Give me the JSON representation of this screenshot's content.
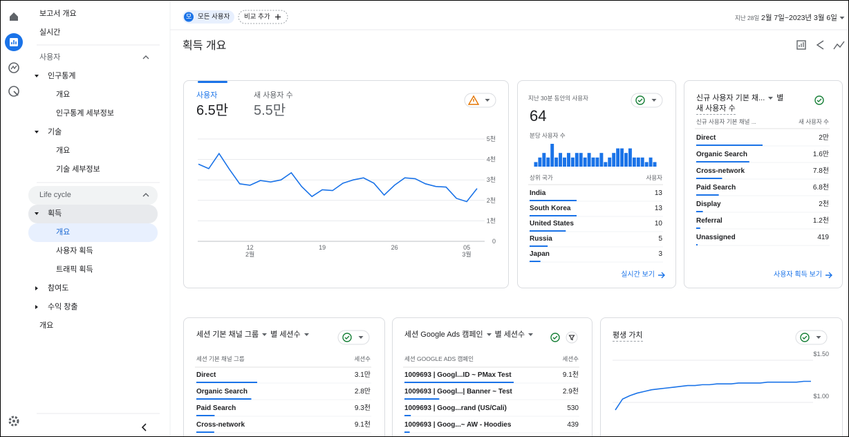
{
  "sidebar": {
    "top": [
      "보고서 개요",
      "실시간"
    ],
    "sections": [
      {
        "title": "사용자",
        "groups": [
          {
            "label": "인구통계",
            "items": [
              "개요",
              "인구통계 세부정보"
            ]
          },
          {
            "label": "기술",
            "items": [
              "개요",
              "기술 세부정보"
            ]
          }
        ]
      },
      {
        "title": "Life cycle",
        "groups": [
          {
            "label": "획득",
            "items": [
              "개요",
              "사용자 획득",
              "트래픽 획득"
            ]
          },
          {
            "label": "참여도",
            "items": []
          },
          {
            "label": "수익 창출",
            "items": []
          }
        ]
      }
    ],
    "bottom": [
      "개요"
    ]
  },
  "topbar": {
    "avatar": "모",
    "segment": "모든 사용자",
    "compare": "비교 추가",
    "period": "지난 28일",
    "date_range": "2월 7일~2023년 3월 6일"
  },
  "page_title": "획득 개요",
  "users_card": {
    "tabs": [
      {
        "label": "사용자",
        "value": "6.5만"
      },
      {
        "label": "새 사용자 수",
        "value": "5.5만"
      }
    ]
  },
  "chart_data": [
    {
      "type": "line",
      "color": "#1a73e8",
      "categories": [
        null,
        null,
        null,
        null,
        null,
        "12",
        null,
        null,
        null,
        null,
        null,
        null,
        "19",
        null,
        null,
        null,
        null,
        null,
        null,
        "26",
        null,
        null,
        null,
        null,
        null,
        null,
        "05",
        null
      ],
      "x_sublabels": [
        null,
        null,
        null,
        null,
        null,
        "2월",
        null,
        null,
        null,
        null,
        null,
        null,
        null,
        null,
        null,
        null,
        null,
        null,
        null,
        null,
        null,
        null,
        null,
        null,
        null,
        null,
        "3월",
        null
      ],
      "values": [
        3770,
        3550,
        4290,
        3520,
        2810,
        2740,
        2970,
        2900,
        3000,
        3350,
        2680,
        2190,
        2520,
        2480,
        2840,
        3000,
        3100,
        2840,
        2260,
        2740,
        3100,
        3060,
        2810,
        2680,
        2650,
        2100,
        1940,
        2580
      ],
      "ylim": [
        0,
        5000
      ],
      "yticks": [
        0,
        {
          "value": 1000,
          "label": "1천"
        },
        {
          "value": 2000,
          "label": "2천"
        },
        {
          "value": 3000,
          "label": "3천"
        },
        {
          "value": 4000,
          "label": "4천"
        },
        {
          "value": 5000,
          "label": "5천"
        }
      ],
      "grid": true
    },
    {
      "type": "bar",
      "color": "#1a73e8",
      "title": "지난 30분 동안의 사용자",
      "total": 64,
      "subtitle": "분당 사용자 수",
      "values": [
        1,
        2,
        3,
        2,
        5,
        2,
        3,
        2,
        3,
        2,
        3,
        3,
        2,
        3,
        2,
        2,
        3,
        1,
        2,
        3,
        4,
        4,
        3,
        4,
        2,
        2,
        2,
        1,
        2,
        1
      ],
      "ylim": [
        0,
        5
      ]
    },
    {
      "type": "line",
      "color": "#1a73e8",
      "title": "평생 가치",
      "values": [
        0.91,
        1.04,
        1.08,
        1.11,
        1.13,
        1.15,
        1.16,
        1.17,
        1.18,
        1.19,
        1.2,
        1.2,
        1.21,
        1.21,
        1.22,
        1.22,
        1.22,
        1.23,
        1.23,
        1.23,
        1.23,
        1.24,
        1.24,
        1.24,
        1.24,
        1.24,
        1.25,
        1.25
      ],
      "ylim": [
        0.8,
        1.6
      ],
      "yticks": [
        {
          "value": 1.5,
          "label": "$1.50"
        },
        {
          "value": 1,
          "label": "$1.00"
        }
      ],
      "grid": true
    }
  ],
  "realtime": {
    "columns": [
      "상위 국가",
      "사용자"
    ],
    "rows": [
      {
        "name": "India",
        "value": 13
      },
      {
        "name": "South Korea",
        "value": 13
      },
      {
        "name": "United States",
        "value": 10
      },
      {
        "name": "Russia",
        "value": 5
      },
      {
        "name": "Japan",
        "value": 3
      }
    ],
    "link": "실시간 보기"
  },
  "new_users": {
    "title": "신규 사용자 기본 채...",
    "by": "별",
    "metric": "새 사용자 수",
    "columns": [
      "신규 사용자 기본 채널 ...",
      "새 사용자 수"
    ],
    "rows": [
      {
        "name": "Direct",
        "value": 20000,
        "label": "2만"
      },
      {
        "name": "Organic Search",
        "value": 16000,
        "label": "1.6만"
      },
      {
        "name": "Cross-network",
        "value": 7800,
        "label": "7.8천"
      },
      {
        "name": "Paid Search",
        "value": 6800,
        "label": "6.8천"
      },
      {
        "name": "Display",
        "value": 2000,
        "label": "2천"
      },
      {
        "name": "Referral",
        "value": 1200,
        "label": "1.2천"
      },
      {
        "name": "Unassigned",
        "value": 419
      }
    ],
    "link": "사용자 획득 보기"
  },
  "sessions_channel": {
    "title": "세션 기본 채널 그룹",
    "by": "별 세션수",
    "columns": [
      "세션 기본 채널 그룹",
      "세션수"
    ],
    "rows": [
      {
        "name": "Direct",
        "value": 31000,
        "label": "3.1만"
      },
      {
        "name": "Organic Search",
        "value": 28000,
        "label": "2.8만"
      },
      {
        "name": "Paid Search",
        "value": 9300,
        "label": "9.3천"
      },
      {
        "name": "Cross-network",
        "value": 9100,
        "label": "9.1천"
      }
    ]
  },
  "sessions_ads": {
    "title": "세션 Google Ads 캠페인",
    "by": "별 세션수",
    "columns": [
      "세션 GOOGLE ADS 캠페인",
      "세션수"
    ],
    "rows": [
      {
        "name": "1009693 | Googl...ID ~ PMax Test",
        "value": 9100,
        "label": "9.1천"
      },
      {
        "name": "1009693 | Googl...| Banner ~ Test",
        "value": 2900,
        "label": "2.9천"
      },
      {
        "name": "1009693 | Goog...rand (US/Cali)",
        "value": 530
      },
      {
        "name": "1009693 | Goog...~ AW - Hoodies",
        "value": 439
      }
    ]
  }
}
